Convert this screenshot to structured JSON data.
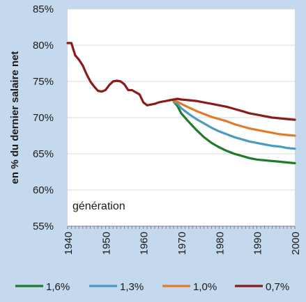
{
  "chart_data": {
    "type": "line",
    "title": "",
    "xlabel": "",
    "ylabel": "en % du dernier salaire net",
    "annotation": "génération",
    "xlim": [
      1940,
      2000
    ],
    "ylim": [
      55,
      85
    ],
    "x_ticks": [
      1940,
      1950,
      1960,
      1970,
      1980,
      1990,
      2000
    ],
    "y_ticks": [
      55,
      60,
      65,
      70,
      75,
      80,
      85
    ],
    "y_tick_labels": [
      "55%",
      "60%",
      "65%",
      "70%",
      "75%",
      "80%",
      "85%"
    ],
    "grid": "horizontal",
    "legend_position": "bottom",
    "series": [
      {
        "name": "1,6%",
        "color": "#1f7a2a",
        "x": [
          1968,
          1969,
          1970,
          1972,
          1974,
          1976,
          1978,
          1980,
          1982,
          1984,
          1986,
          1988,
          1990,
          1992,
          1994,
          1996,
          1998,
          2000
        ],
        "y": [
          72.2,
          71.6,
          70.6,
          69.4,
          68.3,
          67.3,
          66.5,
          65.9,
          65.4,
          65.0,
          64.7,
          64.4,
          64.2,
          64.1,
          64.0,
          63.9,
          63.8,
          63.7
        ]
      },
      {
        "name": "1,3%",
        "color": "#4a9bc0",
        "x": [
          1968,
          1969,
          1970,
          1972,
          1974,
          1976,
          1978,
          1980,
          1982,
          1984,
          1986,
          1988,
          1990,
          1992,
          1994,
          1996,
          1998,
          2000
        ],
        "y": [
          72.2,
          71.9,
          71.3,
          70.5,
          69.8,
          69.2,
          68.6,
          68.1,
          67.7,
          67.3,
          67.0,
          66.7,
          66.5,
          66.3,
          66.1,
          66.0,
          65.8,
          65.7
        ]
      },
      {
        "name": "1,0%",
        "color": "#e07b2a",
        "x": [
          1968,
          1969,
          1970,
          1972,
          1974,
          1976,
          1978,
          1980,
          1982,
          1984,
          1986,
          1988,
          1990,
          1992,
          1994,
          1996,
          1998,
          2000
        ],
        "y": [
          72.3,
          72.2,
          71.9,
          71.4,
          70.9,
          70.5,
          70.1,
          69.8,
          69.5,
          69.1,
          68.8,
          68.5,
          68.3,
          68.1,
          67.9,
          67.7,
          67.6,
          67.5
        ]
      },
      {
        "name": "0,7%",
        "color": "#8b1a1a",
        "x": [
          1940,
          1941,
          1942,
          1943,
          1944,
          1945,
          1946,
          1947,
          1948,
          1949,
          1950,
          1951,
          1952,
          1953,
          1954,
          1955,
          1956,
          1957,
          1958,
          1959,
          1960,
          1961,
          1962,
          1963,
          1964,
          1965,
          1966,
          1967,
          1968,
          1969,
          1970,
          1972,
          1974,
          1976,
          1978,
          1980,
          1982,
          1984,
          1986,
          1988,
          1990,
          1992,
          1994,
          1996,
          1998,
          2000
        ],
        "y": [
          80.3,
          80.3,
          78.6,
          78.0,
          77.2,
          76.0,
          75.0,
          74.3,
          73.7,
          73.6,
          73.8,
          74.5,
          75.0,
          75.1,
          75.0,
          74.6,
          73.8,
          73.8,
          73.5,
          73.2,
          72.1,
          71.7,
          71.8,
          71.9,
          72.1,
          72.2,
          72.3,
          72.4,
          72.5,
          72.6,
          72.5,
          72.4,
          72.3,
          72.1,
          71.9,
          71.7,
          71.5,
          71.2,
          70.9,
          70.6,
          70.4,
          70.2,
          70.0,
          69.9,
          69.8,
          69.7
        ]
      }
    ]
  }
}
